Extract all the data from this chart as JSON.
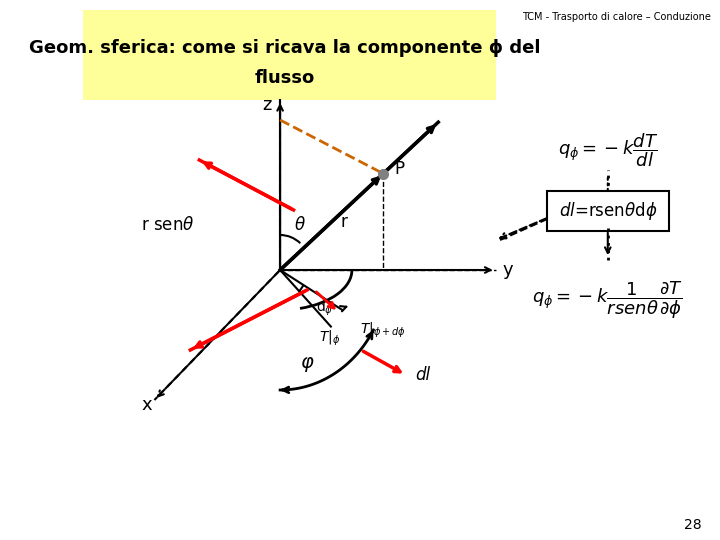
{
  "title": "TCM - Trasporto di calore – Conduzione",
  "header": "Geom. sferica: come si ricava la componente ϕ del\nflusso",
  "page_number": "28",
  "bg_color": "#ffffff",
  "header_bg": "#ffff99",
  "eq1": "$q_\\phi = -k\\dfrac{dT}{dl}$",
  "box_text": "$dl$=rsenθdϕ",
  "eq2": "$q_\\phi = -k\\dfrac{1}{rsen\\theta}\\dfrac{\\partial T}{\\partial \\phi}$"
}
